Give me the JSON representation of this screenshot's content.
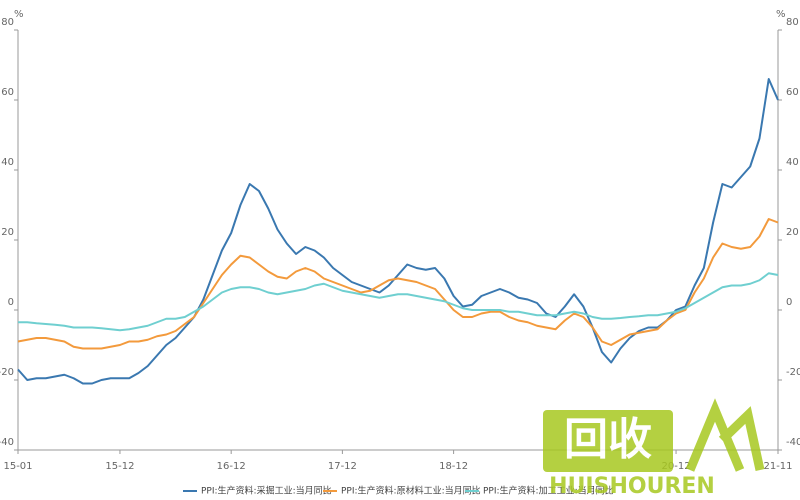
{
  "chart_data": {
    "type": "line",
    "y_unit": "%",
    "y2_unit": "%",
    "categories": [
      "15-01",
      null,
      null,
      null,
      null,
      null,
      null,
      null,
      null,
      null,
      null,
      "15-12",
      null,
      null,
      null,
      null,
      null,
      null,
      null,
      null,
      null,
      null,
      null,
      "16-12",
      null,
      null,
      null,
      null,
      null,
      null,
      null,
      null,
      null,
      null,
      null,
      "17-12",
      null,
      null,
      null,
      null,
      null,
      null,
      null,
      null,
      null,
      null,
      null,
      "18-12",
      null,
      null,
      null,
      null,
      null,
      null,
      null,
      null,
      null,
      null,
      null,
      null,
      null,
      null,
      null,
      null,
      null,
      null,
      null,
      null,
      null,
      null,
      null,
      "20-12",
      null,
      null,
      null,
      null,
      null,
      null,
      null,
      null,
      null,
      null,
      "21-11"
    ],
    "series": [
      {
        "name": "PPI:生产资料:采掘工业:当月同比",
        "color": "#3a78b0",
        "values": [
          -17,
          -20,
          -19.5,
          -19.5,
          -19,
          -18.5,
          -19.5,
          -21,
          -21,
          -20,
          -19.5,
          -19.5,
          -19.5,
          -18,
          -16,
          -13,
          -10,
          -8,
          -5,
          -2,
          3,
          10,
          17,
          22,
          30,
          36,
          34,
          29,
          23,
          19,
          16,
          18,
          17,
          15,
          12,
          10,
          8,
          7,
          6,
          5,
          7,
          10,
          13,
          12,
          11.5,
          12,
          9,
          4,
          1,
          1.5,
          4,
          5,
          6,
          5,
          3.5,
          3,
          2,
          -1,
          -2,
          1,
          4.5,
          1,
          -5,
          -12,
          -15,
          -11,
          -8,
          -6,
          -5,
          -5,
          -3,
          0,
          1,
          7,
          12,
          25,
          36,
          35,
          38,
          41,
          49,
          66,
          60
        ]
      },
      {
        "name": "PPI:生产资料:原材料工业:当月同比",
        "color": "#f39a3c",
        "values": [
          -9,
          -8.5,
          -8,
          -8,
          -8.5,
          -9,
          -10.5,
          -11,
          -11,
          -11,
          -10.5,
          -10,
          -9,
          -9,
          -8.5,
          -7.5,
          -7,
          -6,
          -4,
          -2,
          2,
          6,
          10,
          13,
          15.5,
          15,
          13,
          11,
          9.5,
          9,
          11,
          12,
          11,
          9,
          8,
          7,
          6,
          5,
          5.5,
          7,
          8.5,
          9,
          8.5,
          8,
          7,
          6,
          3,
          0,
          -2,
          -2,
          -1,
          -0.5,
          -0.5,
          -2,
          -3,
          -3.5,
          -4.5,
          -5,
          -5.5,
          -3,
          -1,
          -2,
          -5,
          -9,
          -10,
          -8.5,
          -7,
          -6.5,
          -6,
          -5.5,
          -3,
          -1,
          0,
          5,
          9,
          15,
          19,
          18,
          17.5,
          18,
          21,
          26,
          25
        ]
      },
      {
        "name": "PPI:生产资料:加工工业:当月同比",
        "color": "#6fcfd0",
        "values": [
          -3.5,
          -3.5,
          -3.8,
          -4,
          -4.2,
          -4.5,
          -5,
          -5,
          -5,
          -5.2,
          -5.5,
          -5.8,
          -5.5,
          -5,
          -4.5,
          -3.5,
          -2.5,
          -2.5,
          -2,
          -0.5,
          1,
          3,
          5,
          6,
          6.5,
          6.5,
          6,
          5,
          4.5,
          5,
          5.5,
          6,
          7,
          7.5,
          6.5,
          5.5,
          5,
          4.5,
          4,
          3.5,
          4,
          4.5,
          4.5,
          4,
          3.5,
          3,
          2.5,
          1.5,
          0.5,
          0,
          0,
          0,
          0,
          -0.5,
          -0.5,
          -1,
          -1.5,
          -1.5,
          -1.5,
          -1,
          -0.5,
          -1,
          -2,
          -2.5,
          -2.5,
          -2.3,
          -2,
          -1.8,
          -1.5,
          -1.5,
          -1,
          -0.5,
          0.5,
          2,
          3.5,
          5,
          6.5,
          7,
          7,
          7.5,
          8.5,
          10.5,
          10
        ]
      }
    ],
    "ylim": [
      -40,
      80
    ],
    "yticks": [
      -40,
      -20,
      0,
      20,
      40,
      60,
      80
    ],
    "y2lim": [
      -40,
      80
    ],
    "y2ticks": [
      -40,
      -20,
      0,
      20,
      40,
      60,
      80
    ],
    "grid": false,
    "legend": "bottom"
  },
  "watermark": {
    "logo_text": "回收",
    "brand": "HUISHOUREN"
  }
}
